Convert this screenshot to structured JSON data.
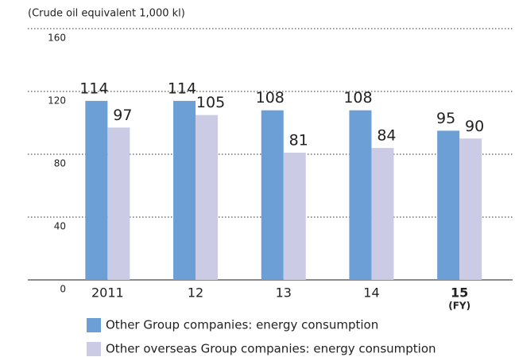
{
  "chart_data": {
    "type": "bar",
    "y_label": "(Crude oil equivalent 1,000 kl)",
    "x_label": "(FY)",
    "categories": [
      "2011",
      "12",
      "13",
      "14",
      "15"
    ],
    "series": [
      {
        "name": "Other Group companies: energy consumption",
        "color": "#6b9fd6",
        "values": [
          114,
          114,
          108,
          108,
          95
        ]
      },
      {
        "name": "Other overseas Group companies: energy consumption",
        "color": "#cbcbe5",
        "values": [
          97,
          105,
          81,
          84,
          90
        ]
      }
    ],
    "ylim": [
      0,
      160
    ],
    "yticks": [
      0,
      40,
      80,
      120,
      160
    ],
    "grid": true
  }
}
